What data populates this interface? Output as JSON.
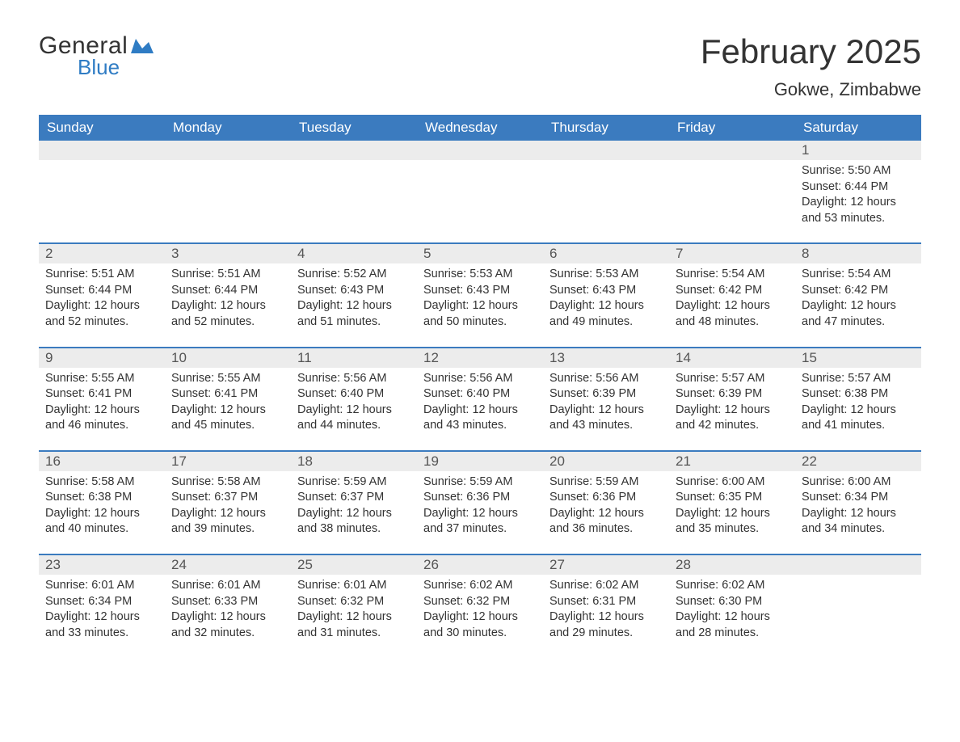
{
  "brand": {
    "general": "General",
    "blue": "Blue",
    "accent": "#2f7cc4"
  },
  "title": "February 2025",
  "location": "Gokwe, Zimbabwe",
  "colors": {
    "header_bg": "#3b7bbf",
    "header_text": "#ffffff",
    "row_divider": "#3b7bbf",
    "daynum_bg": "#ececec",
    "text": "#333333",
    "page_bg": "#ffffff"
  },
  "weekdays": [
    "Sunday",
    "Monday",
    "Tuesday",
    "Wednesday",
    "Thursday",
    "Friday",
    "Saturday"
  ],
  "weeks": [
    [
      {
        "day": "",
        "sunrise": "",
        "sunset": "",
        "daylight": ""
      },
      {
        "day": "",
        "sunrise": "",
        "sunset": "",
        "daylight": ""
      },
      {
        "day": "",
        "sunrise": "",
        "sunset": "",
        "daylight": ""
      },
      {
        "day": "",
        "sunrise": "",
        "sunset": "",
        "daylight": ""
      },
      {
        "day": "",
        "sunrise": "",
        "sunset": "",
        "daylight": ""
      },
      {
        "day": "",
        "sunrise": "",
        "sunset": "",
        "daylight": ""
      },
      {
        "day": "1",
        "sunrise": "Sunrise: 5:50 AM",
        "sunset": "Sunset: 6:44 PM",
        "daylight": "Daylight: 12 hours and 53 minutes."
      }
    ],
    [
      {
        "day": "2",
        "sunrise": "Sunrise: 5:51 AM",
        "sunset": "Sunset: 6:44 PM",
        "daylight": "Daylight: 12 hours and 52 minutes."
      },
      {
        "day": "3",
        "sunrise": "Sunrise: 5:51 AM",
        "sunset": "Sunset: 6:44 PM",
        "daylight": "Daylight: 12 hours and 52 minutes."
      },
      {
        "day": "4",
        "sunrise": "Sunrise: 5:52 AM",
        "sunset": "Sunset: 6:43 PM",
        "daylight": "Daylight: 12 hours and 51 minutes."
      },
      {
        "day": "5",
        "sunrise": "Sunrise: 5:53 AM",
        "sunset": "Sunset: 6:43 PM",
        "daylight": "Daylight: 12 hours and 50 minutes."
      },
      {
        "day": "6",
        "sunrise": "Sunrise: 5:53 AM",
        "sunset": "Sunset: 6:43 PM",
        "daylight": "Daylight: 12 hours and 49 minutes."
      },
      {
        "day": "7",
        "sunrise": "Sunrise: 5:54 AM",
        "sunset": "Sunset: 6:42 PM",
        "daylight": "Daylight: 12 hours and 48 minutes."
      },
      {
        "day": "8",
        "sunrise": "Sunrise: 5:54 AM",
        "sunset": "Sunset: 6:42 PM",
        "daylight": "Daylight: 12 hours and 47 minutes."
      }
    ],
    [
      {
        "day": "9",
        "sunrise": "Sunrise: 5:55 AM",
        "sunset": "Sunset: 6:41 PM",
        "daylight": "Daylight: 12 hours and 46 minutes."
      },
      {
        "day": "10",
        "sunrise": "Sunrise: 5:55 AM",
        "sunset": "Sunset: 6:41 PM",
        "daylight": "Daylight: 12 hours and 45 minutes."
      },
      {
        "day": "11",
        "sunrise": "Sunrise: 5:56 AM",
        "sunset": "Sunset: 6:40 PM",
        "daylight": "Daylight: 12 hours and 44 minutes."
      },
      {
        "day": "12",
        "sunrise": "Sunrise: 5:56 AM",
        "sunset": "Sunset: 6:40 PM",
        "daylight": "Daylight: 12 hours and 43 minutes."
      },
      {
        "day": "13",
        "sunrise": "Sunrise: 5:56 AM",
        "sunset": "Sunset: 6:39 PM",
        "daylight": "Daylight: 12 hours and 43 minutes."
      },
      {
        "day": "14",
        "sunrise": "Sunrise: 5:57 AM",
        "sunset": "Sunset: 6:39 PM",
        "daylight": "Daylight: 12 hours and 42 minutes."
      },
      {
        "day": "15",
        "sunrise": "Sunrise: 5:57 AM",
        "sunset": "Sunset: 6:38 PM",
        "daylight": "Daylight: 12 hours and 41 minutes."
      }
    ],
    [
      {
        "day": "16",
        "sunrise": "Sunrise: 5:58 AM",
        "sunset": "Sunset: 6:38 PM",
        "daylight": "Daylight: 12 hours and 40 minutes."
      },
      {
        "day": "17",
        "sunrise": "Sunrise: 5:58 AM",
        "sunset": "Sunset: 6:37 PM",
        "daylight": "Daylight: 12 hours and 39 minutes."
      },
      {
        "day": "18",
        "sunrise": "Sunrise: 5:59 AM",
        "sunset": "Sunset: 6:37 PM",
        "daylight": "Daylight: 12 hours and 38 minutes."
      },
      {
        "day": "19",
        "sunrise": "Sunrise: 5:59 AM",
        "sunset": "Sunset: 6:36 PM",
        "daylight": "Daylight: 12 hours and 37 minutes."
      },
      {
        "day": "20",
        "sunrise": "Sunrise: 5:59 AM",
        "sunset": "Sunset: 6:36 PM",
        "daylight": "Daylight: 12 hours and 36 minutes."
      },
      {
        "day": "21",
        "sunrise": "Sunrise: 6:00 AM",
        "sunset": "Sunset: 6:35 PM",
        "daylight": "Daylight: 12 hours and 35 minutes."
      },
      {
        "day": "22",
        "sunrise": "Sunrise: 6:00 AM",
        "sunset": "Sunset: 6:34 PM",
        "daylight": "Daylight: 12 hours and 34 minutes."
      }
    ],
    [
      {
        "day": "23",
        "sunrise": "Sunrise: 6:01 AM",
        "sunset": "Sunset: 6:34 PM",
        "daylight": "Daylight: 12 hours and 33 minutes."
      },
      {
        "day": "24",
        "sunrise": "Sunrise: 6:01 AM",
        "sunset": "Sunset: 6:33 PM",
        "daylight": "Daylight: 12 hours and 32 minutes."
      },
      {
        "day": "25",
        "sunrise": "Sunrise: 6:01 AM",
        "sunset": "Sunset: 6:32 PM",
        "daylight": "Daylight: 12 hours and 31 minutes."
      },
      {
        "day": "26",
        "sunrise": "Sunrise: 6:02 AM",
        "sunset": "Sunset: 6:32 PM",
        "daylight": "Daylight: 12 hours and 30 minutes."
      },
      {
        "day": "27",
        "sunrise": "Sunrise: 6:02 AM",
        "sunset": "Sunset: 6:31 PM",
        "daylight": "Daylight: 12 hours and 29 minutes."
      },
      {
        "day": "28",
        "sunrise": "Sunrise: 6:02 AM",
        "sunset": "Sunset: 6:30 PM",
        "daylight": "Daylight: 12 hours and 28 minutes."
      },
      {
        "day": "",
        "sunrise": "",
        "sunset": "",
        "daylight": ""
      }
    ]
  ]
}
